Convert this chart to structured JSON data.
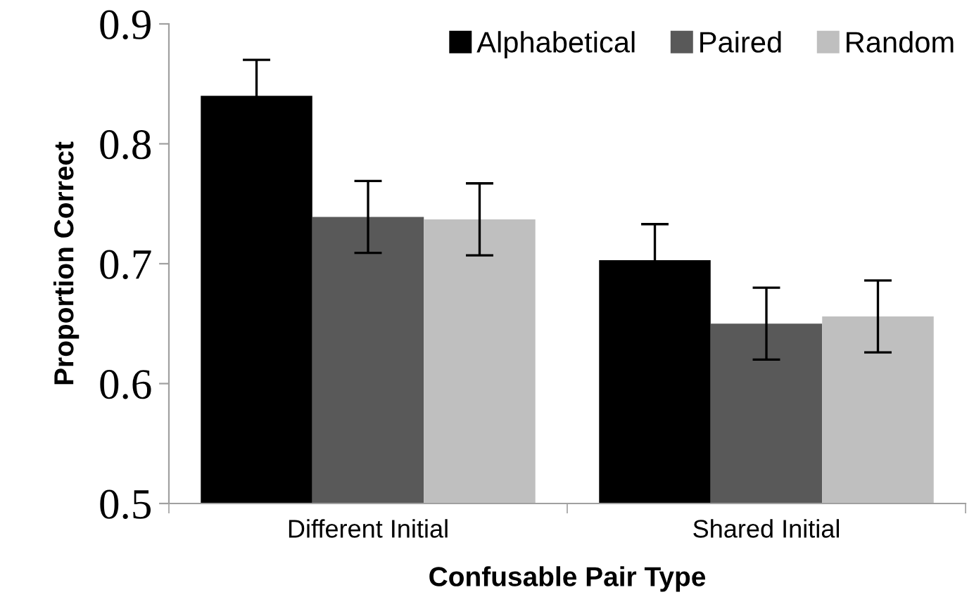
{
  "chart_data": {
    "type": "bar",
    "xlabel": "Confusable Pair Type",
    "ylabel": "Proportion Correct",
    "categories": [
      "Different Initial",
      "Shared Initial"
    ],
    "series": [
      {
        "name": "Alphabetical",
        "color": "#000000",
        "values": [
          0.84,
          0.703
        ],
        "errors": [
          0.03,
          0.03
        ]
      },
      {
        "name": "Paired",
        "color": "#595959",
        "values": [
          0.739,
          0.65
        ],
        "errors": [
          0.03,
          0.03
        ]
      },
      {
        "name": "Random",
        "color": "#bfbfbf",
        "values": [
          0.737,
          0.656
        ],
        "errors": [
          0.03,
          0.03
        ]
      }
    ],
    "ylim": [
      0.5,
      0.9
    ],
    "yticks": [
      0.5,
      0.6,
      0.7,
      0.8,
      0.9
    ],
    "grid": false,
    "legend": "top right"
  }
}
